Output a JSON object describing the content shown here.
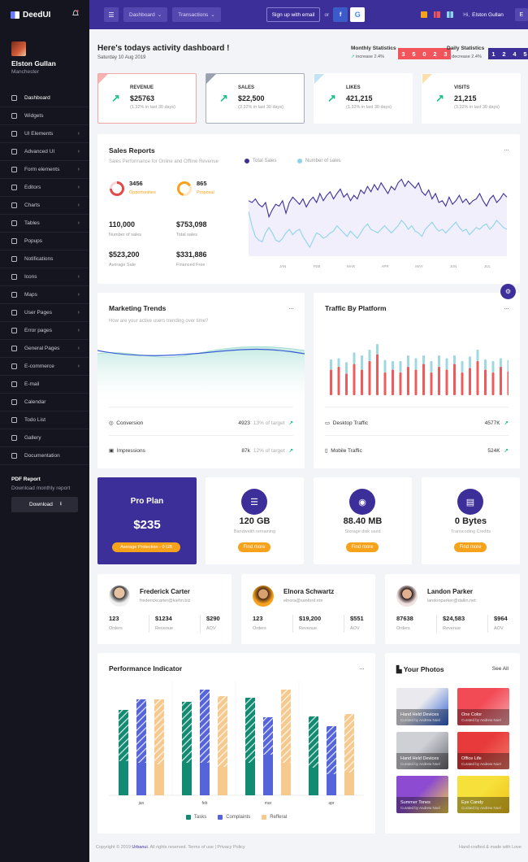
{
  "brand": "DeedUI",
  "user": {
    "name": "Elston Gullan",
    "location": "Manchester"
  },
  "nav": [
    {
      "label": "Dashboard",
      "chev": false
    },
    {
      "label": "Widgets",
      "chev": false
    },
    {
      "label": "UI Elements",
      "chev": true
    },
    {
      "label": "Advanced UI",
      "chev": true
    },
    {
      "label": "Form elements",
      "chev": true
    },
    {
      "label": "Editors",
      "chev": true
    },
    {
      "label": "Charts",
      "chev": true
    },
    {
      "label": "Tables",
      "chev": true
    },
    {
      "label": "Popups",
      "chev": false
    },
    {
      "label": "Notifications",
      "chev": false
    },
    {
      "label": "Icons",
      "chev": true
    },
    {
      "label": "Maps",
      "chev": true
    },
    {
      "label": "User Pages",
      "chev": true
    },
    {
      "label": "Error pages",
      "chev": true
    },
    {
      "label": "General Pages",
      "chev": true
    },
    {
      "label": "E-commerce",
      "chev": true
    },
    {
      "label": "E-mail",
      "chev": false
    },
    {
      "label": "Calendar",
      "chev": false
    },
    {
      "label": "Todo List",
      "chev": false
    },
    {
      "label": "Gallery",
      "chev": false
    },
    {
      "label": "Documentation",
      "chev": false
    }
  ],
  "pdf": {
    "title": "PDF Report",
    "subtitle": "Download monthly report",
    "button": "Download"
  },
  "topbar": {
    "dashboard": "Dashboard",
    "transactions": "Transactions",
    "signup": "Sign up with email",
    "or": "or",
    "fb": "f",
    "google": "G",
    "hi": "Hi,",
    "user": "Elston Gullan",
    "avatar": "E"
  },
  "header": {
    "title": "Here's todays activity dashboard !",
    "date": "Saturday 10 Aug 2019"
  },
  "monthly": {
    "label": "Monthly Statistics",
    "sub": "increase 2.4%",
    "digits": [
      "3",
      "5",
      "0",
      "2",
      "3"
    ],
    "color": "#f2545b"
  },
  "daily": {
    "label": "Daily Statistics",
    "sub": "decrease 2.4%",
    "digits": [
      "1",
      "2",
      "4",
      "5"
    ],
    "color": "#3d2f9a"
  },
  "kpis": [
    {
      "label": "REVENUE",
      "value": "$25763",
      "sub": "(1.32% in last 30 days)",
      "color": "#f7b2b2",
      "border": "#f2a6a6"
    },
    {
      "label": "SALES",
      "value": "$22,500",
      "sub": "(3.32% in last 30 days)",
      "color": "#9aa0b0",
      "border": "#a7adbb"
    },
    {
      "label": "LIKES",
      "value": "421,215",
      "sub": "(1.32% in last 30 days)",
      "color": "#bfe4f4",
      "border": "#ffffff"
    },
    {
      "label": "VISITS",
      "value": "21,215",
      "sub": "(3.32% in last 30 days)",
      "color": "#fbe0ad",
      "border": "#ffffff"
    }
  ],
  "sales": {
    "title": "Sales Reports",
    "sub": "Sales Performance for Online and Offline Revenue",
    "legend1": "Total Sales",
    "legend2": "Number of sales",
    "opp_val": "3456",
    "opp_lbl": "Opportunities",
    "prop_val": "865",
    "prop_lbl": "Proposal",
    "stats": [
      {
        "v": "110,000",
        "l": "Number of sales"
      },
      {
        "v": "$753,098",
        "l": "Total sales"
      },
      {
        "v": "$523,200",
        "l": "Average Sale"
      },
      {
        "v": "$331,886",
        "l": "Financed Free"
      }
    ]
  },
  "chart_data": [
    {
      "type": "line",
      "months": [
        "JAN",
        "FEB",
        "MAR",
        "APR",
        "MAY",
        "JUN",
        "JUL"
      ],
      "series": [
        {
          "name": "Total Sales",
          "color": "#3d2f9a",
          "values": [
            62,
            60,
            64,
            58,
            55,
            60,
            44,
            52,
            58,
            56,
            62,
            48,
            60,
            66,
            62,
            58,
            64,
            55,
            62,
            66,
            60,
            70,
            62,
            68,
            72,
            64,
            70,
            75,
            66,
            70,
            62,
            68,
            64,
            74,
            70,
            78,
            72,
            80,
            74,
            82,
            76,
            70,
            78,
            74,
            82,
            86,
            78,
            84,
            80,
            76,
            82,
            72,
            68,
            74,
            64,
            70,
            60,
            62,
            56,
            66,
            58,
            62,
            68,
            60,
            64,
            58,
            62,
            64,
            70,
            62,
            56,
            64,
            68,
            60,
            64,
            70,
            66
          ]
        },
        {
          "name": "Number of sales",
          "color": "#8fd3ea",
          "values": [
            50,
            34,
            22,
            18,
            16,
            26,
            32,
            26,
            18,
            16,
            20,
            26,
            30,
            24,
            28,
            30,
            22,
            16,
            10,
            18,
            26,
            24,
            20,
            22,
            26,
            28,
            34,
            30,
            26,
            22,
            28,
            24,
            20,
            26,
            32,
            36,
            30,
            28,
            26,
            30,
            34,
            30,
            26,
            30,
            34,
            40,
            36,
            30,
            34,
            28,
            26,
            22,
            30,
            34,
            38,
            32,
            28,
            30,
            26,
            30,
            34,
            38,
            32,
            28,
            30,
            24,
            28,
            32,
            30,
            34,
            36,
            30,
            34,
            40,
            36,
            32,
            30
          ]
        }
      ]
    },
    {
      "type": "bar",
      "title": "Performance Indicator",
      "categories": [
        "jan",
        "feb",
        "mar",
        "apr"
      ],
      "series": [
        {
          "name": "Tasks",
          "color": "#138a72"
        },
        {
          "name": "Complaints",
          "color": "#5564d9"
        },
        {
          "name": "Refferal",
          "color": "#f6c98f"
        }
      ],
      "values": [
        [
          105,
          118,
          118,
          115,
          130,
          122,
          120,
          96,
          130,
          97,
          85,
          100
        ],
        [
          42,
          40,
          38,
          40,
          40,
          35,
          40,
          50,
          40,
          34,
          26,
          28
        ]
      ],
      "ymax": 140
    }
  ],
  "marketing": {
    "title": "Marketing Trends",
    "sub": "How are your active users trending over time?",
    "rows": [
      {
        "label": "Conversion",
        "val": "4923",
        "pct": "13% of target"
      },
      {
        "label": "Impressions",
        "val": "87k",
        "pct": "12% of target"
      }
    ]
  },
  "traffic": {
    "title": "Traffic By Platform",
    "rows": [
      {
        "label": "Desktop Traffic",
        "val": "4577K"
      },
      {
        "label": "Mobile Traffic",
        "val": "524K"
      }
    ],
    "bars": [
      {
        "r": 0.45,
        "t": 0.18
      },
      {
        "r": 0.5,
        "t": 0.15
      },
      {
        "r": 0.38,
        "t": 0.2
      },
      {
        "r": 0.55,
        "t": 0.2
      },
      {
        "r": 0.45,
        "t": 0.25
      },
      {
        "r": 0.6,
        "t": 0.2
      },
      {
        "r": 0.72,
        "t": 0.18
      },
      {
        "r": 0.4,
        "t": 0.22
      },
      {
        "r": 0.45,
        "t": 0.15
      },
      {
        "r": 0.4,
        "t": 0.2
      },
      {
        "r": 0.5,
        "t": 0.2
      },
      {
        "r": 0.45,
        "t": 0.2
      },
      {
        "r": 0.55,
        "t": 0.15
      },
      {
        "r": 0.4,
        "t": 0.2
      },
      {
        "r": 0.5,
        "t": 0.2
      },
      {
        "r": 0.45,
        "t": 0.2
      },
      {
        "r": 0.55,
        "t": 0.15
      },
      {
        "r": 0.4,
        "t": 0.2
      },
      {
        "r": 0.48,
        "t": 0.2
      },
      {
        "r": 0.6,
        "t": 0.2
      },
      {
        "r": 0.45,
        "t": 0.18
      },
      {
        "r": 0.4,
        "t": 0.2
      },
      {
        "r": 0.5,
        "t": 0.15
      },
      {
        "r": 0.42,
        "t": 0.2
      }
    ]
  },
  "pro": {
    "title": "Pro Plan",
    "price": "$235",
    "badge": "Average Protection - 0 GB"
  },
  "storage": [
    {
      "val": "120 GB",
      "lbl": "Bandwidth remaining",
      "btn": "Find more"
    },
    {
      "val": "88.40 MB",
      "lbl": "Storage disk used",
      "btn": "Find more"
    },
    {
      "val": "0 Bytes",
      "lbl": "Transcoding Credits",
      "btn": "Find more"
    }
  ],
  "contacts": [
    {
      "name": "Frederick Carter",
      "email": "frederickcarter@kiehn.biz",
      "orders": "123",
      "revenue": "$1234",
      "aov": "$290"
    },
    {
      "name": "Elnora Schwartz",
      "email": "elnora@sanford.me",
      "orders": "123",
      "revenue": "$19,200",
      "aov": "$551"
    },
    {
      "name": "Landon Parker",
      "email": "landonparker@dallin.net",
      "orders": "87638",
      "revenue": "$24,583",
      "aov": "$964"
    }
  ],
  "contact_labels": {
    "orders": "Orders",
    "revenue": "Revenue",
    "aov": "AOV"
  },
  "photos": {
    "title": "Your Photos",
    "see_all": "See All",
    "items": [
      {
        "cap": "Hand Held Devices",
        "by": "Curated by Andrew Noel",
        "c1": "#e9e9ee",
        "c2": "#2b5fd3"
      },
      {
        "cap": "One Color",
        "by": "Curated by Andrew Noel",
        "c1": "#f24b56",
        "c2": "#f6aab0"
      },
      {
        "cap": "Hand Held Devices",
        "by": "Curated by Andrew Noel",
        "c1": "#cfcfd6",
        "c2": "#6b6b75"
      },
      {
        "cap": "Office Life",
        "by": "Curated by Andrew Noel",
        "c1": "#e83a3a",
        "c2": "#f27b6a"
      },
      {
        "cap": "Summer Tones",
        "by": "Curated by Andrew Noel",
        "c1": "#8c4bd0",
        "c2": "#f6d54a"
      },
      {
        "cap": "Eye Candy",
        "by": "Curated by Andrew Noel",
        "c1": "#f6e13a",
        "c2": "#f2c21a"
      }
    ]
  },
  "footer": {
    "left_pre": "Copyright © 2019",
    "left_brand": "Urbanui",
    "left_post": ". All rights reserved.",
    "terms": "Terms of use",
    "sep": "|",
    "privacy": "Privacy Policy",
    "right": "Hand-crafted & made with Love"
  }
}
